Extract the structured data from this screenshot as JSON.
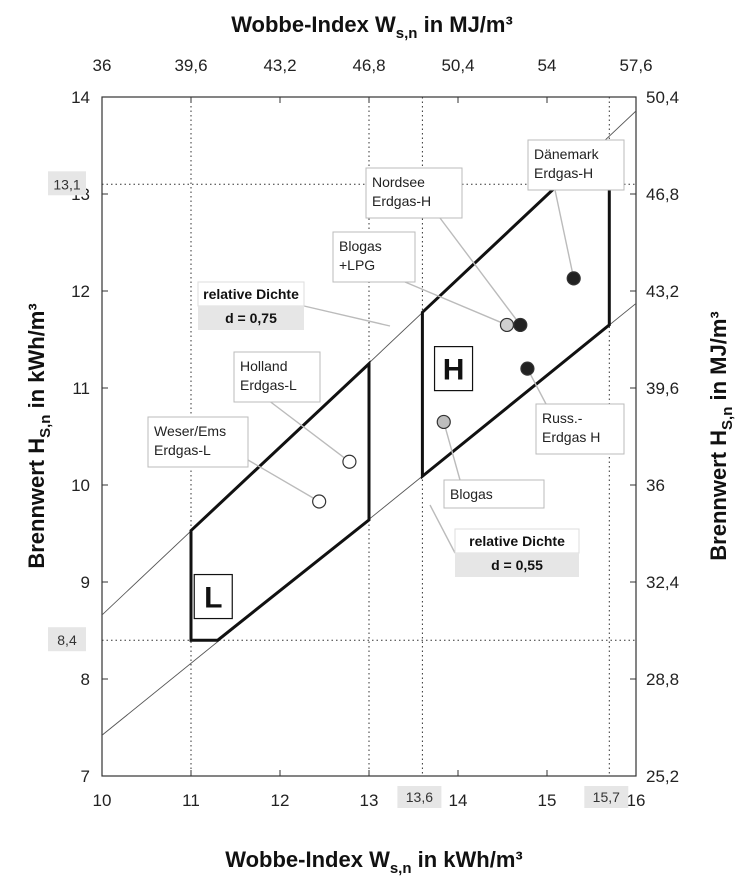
{
  "chart_data": {
    "type": "scatter",
    "title": "Wobbe-Index W<sub>s,n</sub> in MJ/m³",
    "axes": {
      "x_bottom": {
        "label": "Wobbe-Index W",
        "label_sub": "s,n",
        "label_unit": " in kWh/m³",
        "range": [
          10,
          16
        ],
        "ticks": [
          "10",
          "11",
          "12",
          "13",
          "14",
          "15",
          "16"
        ]
      },
      "x_top": {
        "label": "Wobbe-Index W",
        "label_sub": "s,n",
        "label_unit": " in MJ/m³",
        "range": [
          36,
          57.6
        ],
        "ticks": [
          "36",
          "39,6",
          "43,2",
          "46,8",
          "50,4",
          "54",
          "57,6"
        ]
      },
      "y_left": {
        "label": "Brennwert H",
        "label_sub": "S,n",
        "label_unit": " in kWh/m³",
        "range": [
          7,
          14
        ],
        "ticks": [
          "7",
          "8",
          "9",
          "10",
          "11",
          "12",
          "13",
          "14"
        ]
      },
      "y_right": {
        "label": "Brennwert H",
        "label_sub": "S,n",
        "label_unit": " in MJ/m³",
        "range": [
          25.2,
          50.4
        ],
        "ticks": [
          "25,2",
          "28,8",
          "32,4",
          "36",
          "39,6",
          "43,2",
          "46,8",
          "50,4"
        ]
      }
    },
    "highlight_ticks": [
      {
        "axis": "y",
        "value": 13.1,
        "label": "13,1"
      },
      {
        "axis": "y",
        "value": 8.4,
        "label": "8,4"
      },
      {
        "axis": "x",
        "value": 13.6,
        "label": "13,6"
      },
      {
        "axis": "x",
        "value": 15.7,
        "label": "15,7"
      }
    ],
    "density_lines": [
      {
        "name": "relative Dichte",
        "value_label": "d = 0,75",
        "slope": 0.866
      },
      {
        "name": "relative Dichte",
        "value_label": "d = 0,55",
        "slope": 0.742
      }
    ],
    "regions": [
      {
        "label": "L",
        "polygon": [
          [
            11.0,
            8.4
          ],
          [
            11.3,
            8.4
          ],
          [
            13.0,
            9.64
          ],
          [
            13.0,
            11.25
          ],
          [
            11.0,
            9.53
          ]
        ]
      },
      {
        "label": "H",
        "polygon": [
          [
            13.6,
            10.09
          ],
          [
            15.7,
            11.65
          ],
          [
            15.7,
            13.1
          ],
          [
            15.13,
            13.1
          ],
          [
            13.6,
            11.78
          ]
        ]
      }
    ],
    "points": [
      {
        "name": "Weser/Ems Erdgas-L",
        "label_lines": [
          "Weser/Ems",
          "Erdgas-L"
        ],
        "x": 12.44,
        "y": 9.83,
        "fill": "#ffffff"
      },
      {
        "name": "Holland Erdgas-L",
        "label_lines": [
          "Holland",
          "Erdgas-L"
        ],
        "x": 12.78,
        "y": 10.24,
        "fill": "#ffffff"
      },
      {
        "name": "Blogas",
        "label_lines": [
          "Blogas"
        ],
        "x": 13.84,
        "y": 10.65,
        "fill": "#bdbdbd"
      },
      {
        "name": "Blogas +LPG",
        "label_lines": [
          "Blogas",
          "+LPG"
        ],
        "x": 14.55,
        "y": 11.65,
        "fill": "#d0d0d0"
      },
      {
        "name": "Nordsee Erdgas-H",
        "label_lines": [
          "Nordsee",
          "Erdgas-H"
        ],
        "x": 14.7,
        "y": 11.65,
        "fill": "#222222"
      },
      {
        "name": "Russ.- Erdgas H",
        "label_lines": [
          "Russ.-",
          "Erdgas H"
        ],
        "x": 14.78,
        "y": 11.2,
        "fill": "#222222"
      },
      {
        "name": "Dänemark Erdgas-H",
        "label_lines": [
          "Dänemark",
          "Erdgas-H"
        ],
        "x": 15.3,
        "y": 12.13,
        "fill": "#222222"
      }
    ],
    "grid": false,
    "legend": "none"
  }
}
